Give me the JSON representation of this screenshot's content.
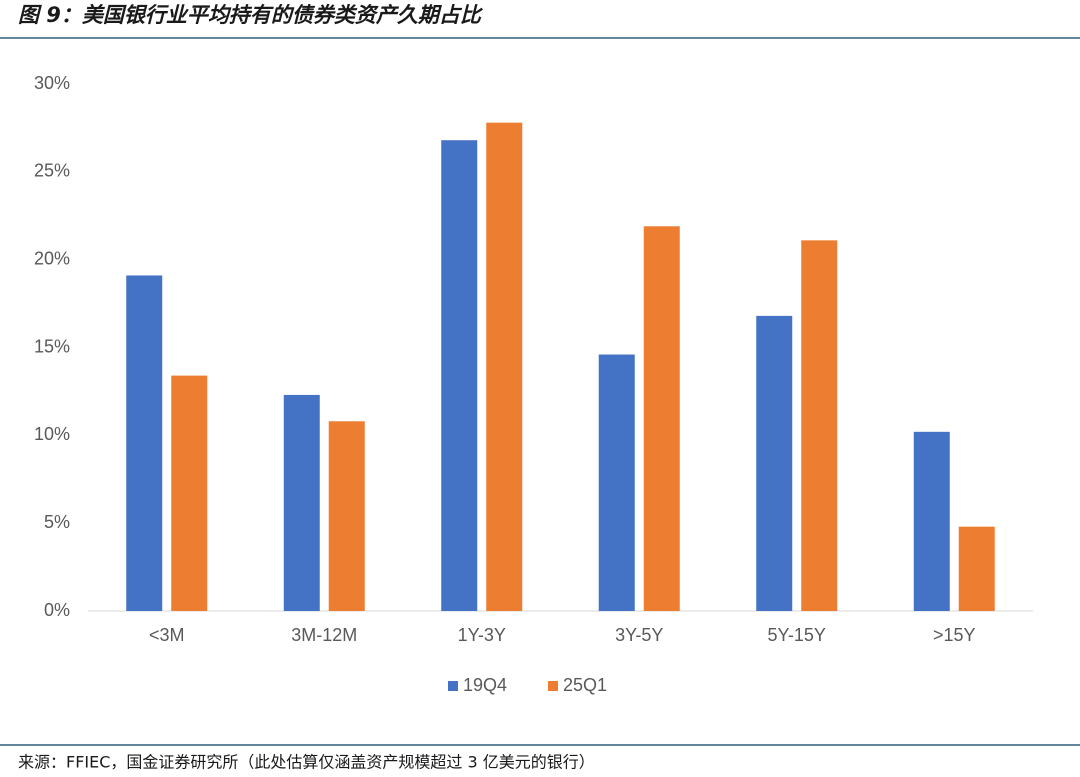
{
  "chart_data": {
    "type": "bar",
    "title": "图 9：美国银行业平均持有的债券类资产久期占比",
    "source": "来源：FFIEC，国金证券研究所（此处估算仅涵盖资产规模超过 3 亿美元的银行）",
    "categories": [
      "<3M",
      "3M-12M",
      "1Y-3Y",
      "3Y-5Y",
      "5Y-15Y",
      ">15Y"
    ],
    "series": [
      {
        "name": "19Q4",
        "color": "#4472c4",
        "values": [
          19.1,
          12.3,
          26.8,
          14.6,
          16.8,
          10.2
        ]
      },
      {
        "name": "25Q1",
        "color": "#ed7d31",
        "values": [
          13.4,
          10.8,
          27.8,
          21.9,
          21.1,
          4.8
        ]
      }
    ],
    "ylim": [
      0,
      30
    ],
    "yticks": [
      {
        "value": 0,
        "label": "0%"
      },
      {
        "value": 5,
        "label": "5%"
      },
      {
        "value": 10,
        "label": "10%"
      },
      {
        "value": 15,
        "label": "15%"
      },
      {
        "value": 20,
        "label": "20%"
      },
      {
        "value": 25,
        "label": "25%"
      },
      {
        "value": 30,
        "label": "30%"
      }
    ],
    "grid": false,
    "legend": "bottom"
  }
}
